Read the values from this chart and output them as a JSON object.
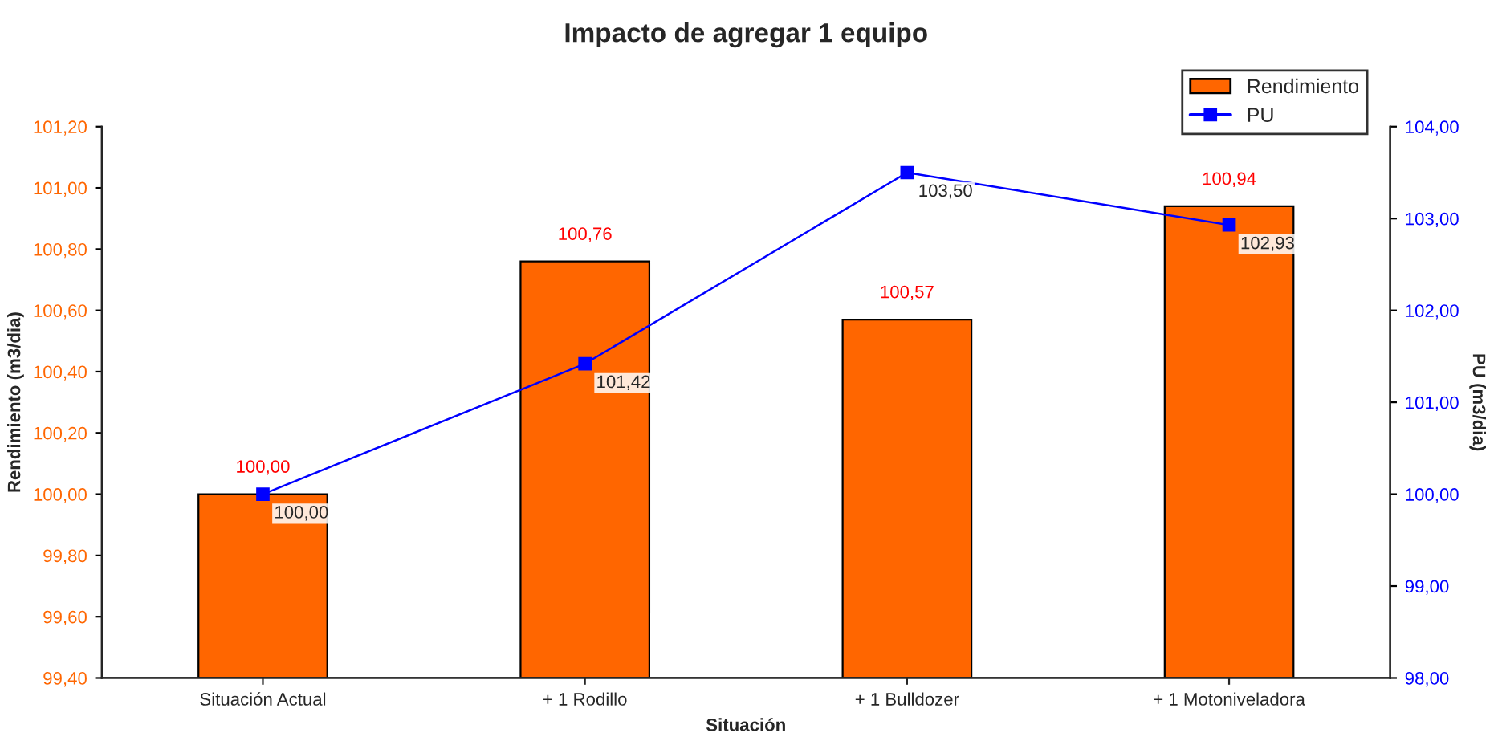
{
  "chart_data": {
    "type": "bar",
    "title": "Impacto de agregar 1 equipo",
    "xlabel": "Situación",
    "ylabel": "Rendimiento (m3/dia)",
    "y2label": "PU (m3/dia)",
    "categories": [
      "Situación Actual",
      "+ 1 Rodillo",
      "+ 1 Bulldozer",
      "+ 1 Motoniveladora"
    ],
    "series": [
      {
        "name": "Rendimiento",
        "color": "#ff6600",
        "values": [
          100.0,
          100.76,
          100.57,
          100.94
        ],
        "value_labels": [
          "100,00",
          "100,76",
          "100,57",
          "100,94"
        ]
      },
      {
        "name": "PU",
        "type": "line",
        "axis": "y2",
        "color": "#0000ff",
        "marker": "square",
        "values": [
          100.0,
          101.42,
          103.5,
          102.93
        ],
        "value_labels": [
          "100,00",
          "101,42",
          "103,50",
          "102,93"
        ]
      }
    ],
    "ylim": [
      99.4,
      101.2
    ],
    "yticks": [
      {
        "value": 99.4,
        "label": "99,40"
      },
      {
        "value": 99.6,
        "label": "99,60"
      },
      {
        "value": 99.8,
        "label": "99,80"
      },
      {
        "value": 100.0,
        "label": "100,00"
      },
      {
        "value": 100.2,
        "label": "100,20"
      },
      {
        "value": 100.4,
        "label": "100,40"
      },
      {
        "value": 100.6,
        "label": "100,60"
      },
      {
        "value": 100.8,
        "label": "100,80"
      },
      {
        "value": 101.0,
        "label": "101,00"
      },
      {
        "value": 101.2,
        "label": "101,20"
      }
    ],
    "y2lim": [
      98,
      104
    ],
    "y2ticks": [
      {
        "value": 98,
        "label": "98,00"
      },
      {
        "value": 99,
        "label": "99,00"
      },
      {
        "value": 100,
        "label": "100,00"
      },
      {
        "value": 101,
        "label": "101,00"
      },
      {
        "value": 102,
        "label": "102,00"
      },
      {
        "value": 103,
        "label": "103,00"
      },
      {
        "value": 104,
        "label": "104,00"
      }
    ],
    "grid": false,
    "legend": "top right"
  }
}
